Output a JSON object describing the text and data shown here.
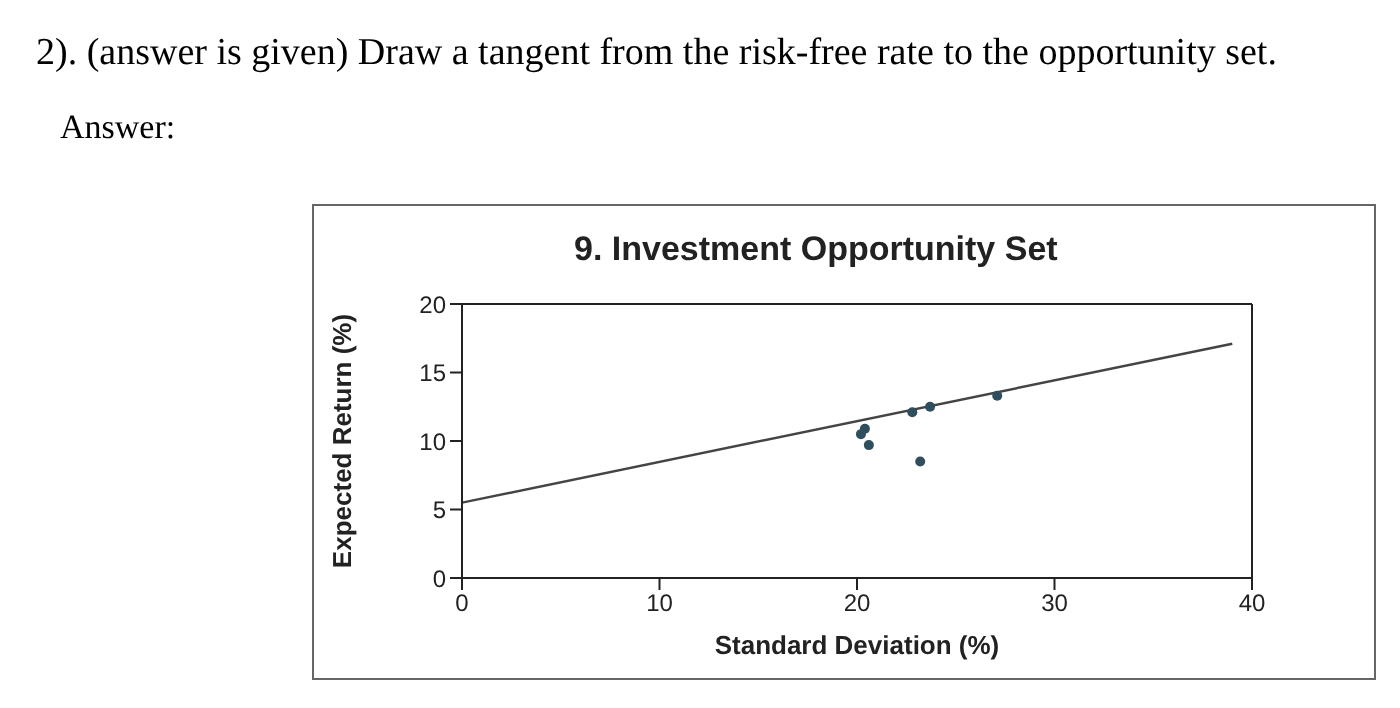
{
  "chart_data": {
    "type": "scatter",
    "title": "9. Investment Opportunity Set",
    "xlabel": "Standard Deviation (%)",
    "ylabel": "Expected Return (%)",
    "annotations": [
      "2). (answer is given) Draw a tangent from the risk-free rate to the opportunity set.",
      "Answer:"
    ],
    "series": [
      {
        "color": "#2f4f5f",
        "marker": "circle",
        "x": [
          20.2,
          20.4,
          20.6,
          22.8,
          23.2,
          23.7,
          27.1
        ],
        "values": [
          10.5,
          10.9,
          9.7,
          12.1,
          8.5,
          12.5,
          13.3
        ]
      },
      {
        "type": "line",
        "color": "#444444",
        "x": [
          0,
          39
        ],
        "values": [
          5.5,
          17.1
        ]
      }
    ],
    "xlim": [
      0,
      40
    ],
    "xticks": [
      0,
      10,
      20,
      30,
      40
    ],
    "ylim": [
      0,
      20
    ],
    "yticks": [
      0,
      5,
      10,
      15,
      20
    ],
    "grid": false
  }
}
